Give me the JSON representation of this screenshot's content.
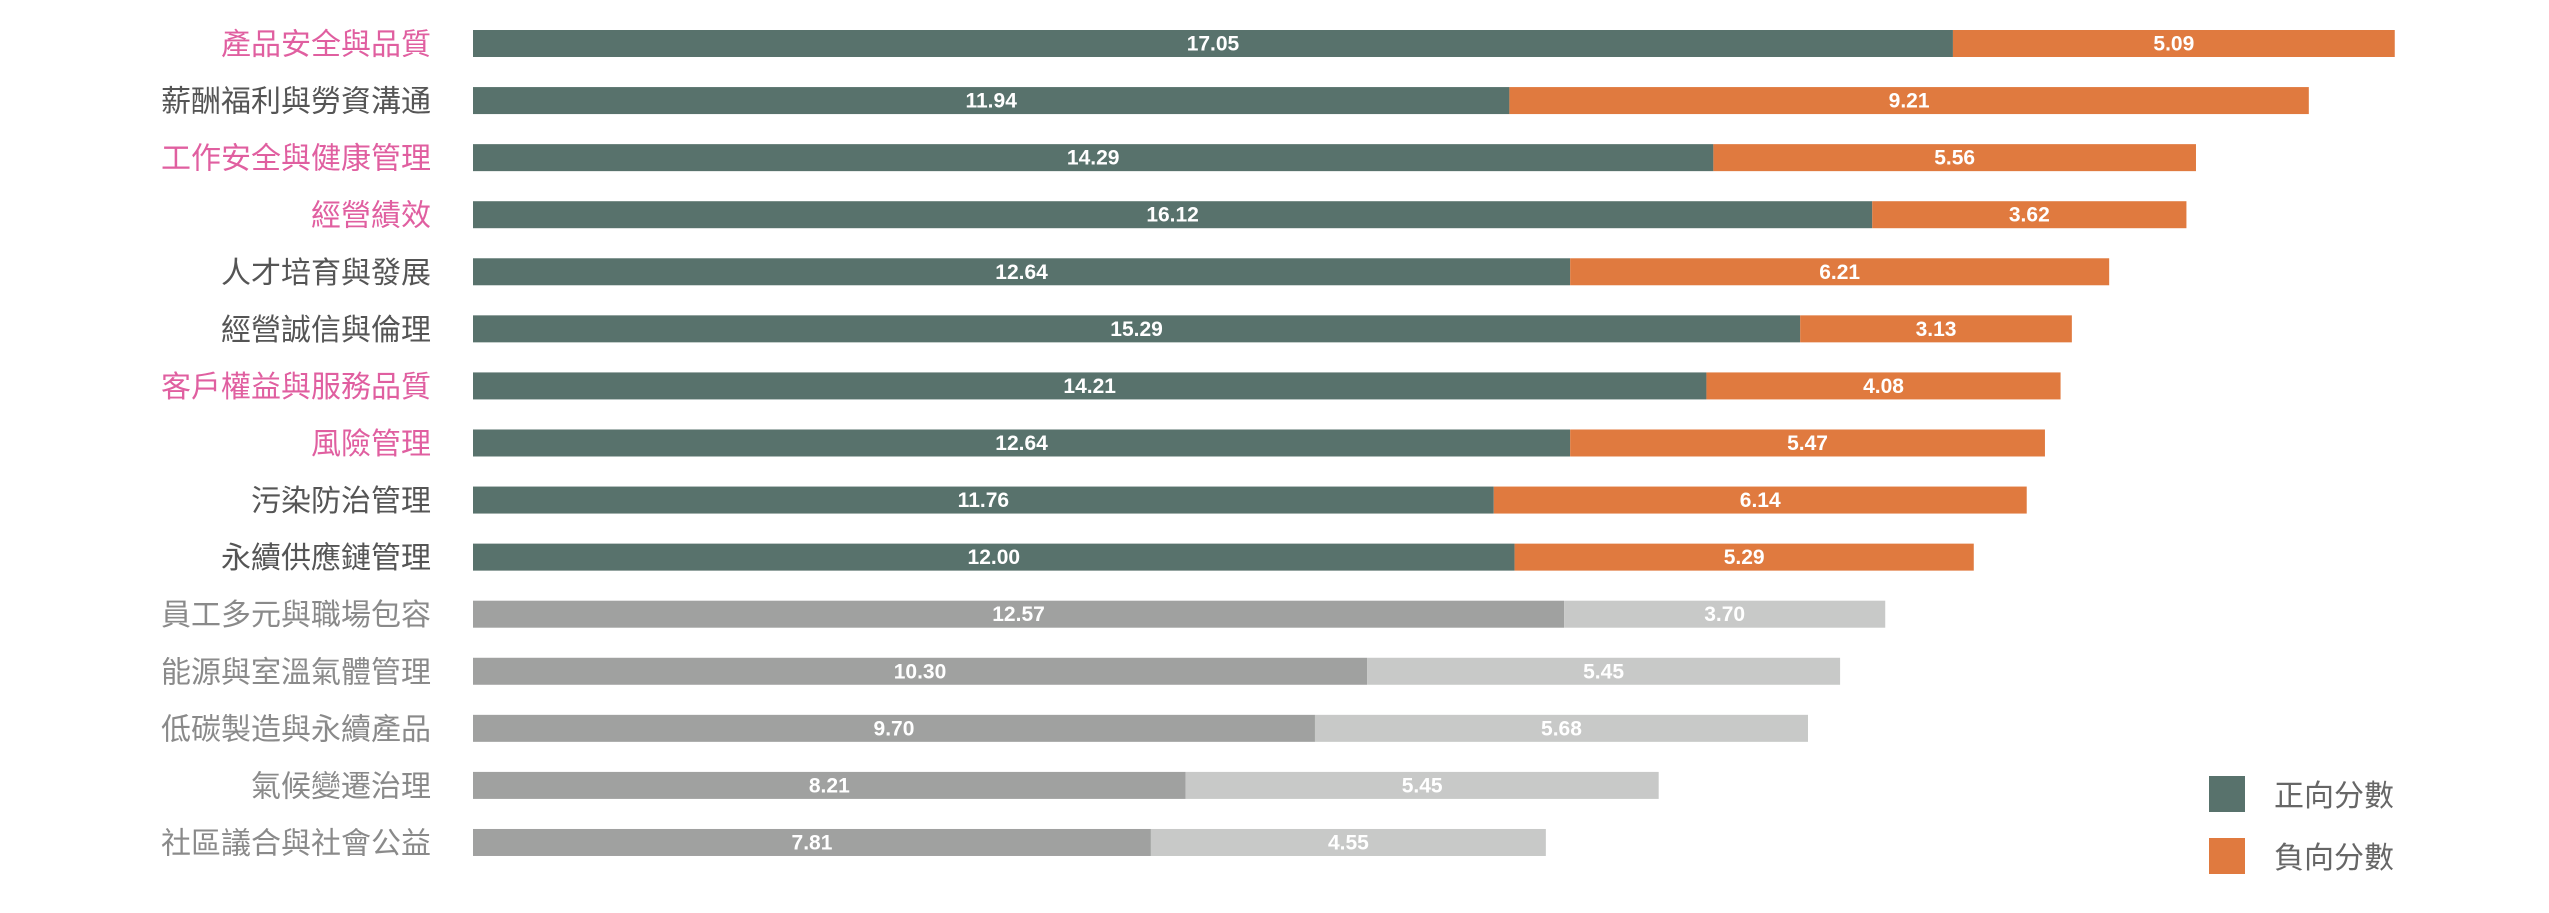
{
  "chart_data": {
    "type": "bar",
    "orientation": "horizontal",
    "stacked": true,
    "title": "",
    "xlabel": "",
    "ylabel": "",
    "xlim": [
      0,
      22.14
    ],
    "grid": false,
    "legend_position": "bottom-right",
    "categories": [
      "產品安全與品質",
      "薪酬福利與勞資溝通",
      "工作安全與健康管理",
      "經營績效",
      "人才培育與發展",
      "經營誠信與倫理",
      "客戶權益與服務品質",
      "風險管理",
      "污染防治管理",
      "永續供應鏈管理",
      "員工多元與職場包容",
      "能源與室溫氣體管理",
      "低碳製造與永續產品",
      "氣候變遷治理",
      "社區議合與社會公益"
    ],
    "category_highlight": [
      "pink",
      "dark",
      "pink",
      "pink",
      "dark",
      "dark",
      "pink",
      "pink",
      "dark",
      "dark",
      "muted",
      "muted",
      "muted",
      "muted",
      "muted"
    ],
    "series": [
      {
        "name": "正向分數",
        "values": [
          17.05,
          11.94,
          14.29,
          16.12,
          12.64,
          15.29,
          14.21,
          12.64,
          11.76,
          12.0,
          12.57,
          10.3,
          9.7,
          8.21,
          7.81
        ],
        "labels": [
          "17.05",
          "11.94",
          "14.29",
          "16.12",
          "12.64",
          "15.29",
          "14.21",
          "12.64",
          "11.76",
          "12.00",
          "12.57",
          "10.30",
          "9.70",
          "8.21",
          "7.81"
        ]
      },
      {
        "name": "負向分數",
        "values": [
          5.09,
          9.21,
          5.56,
          3.62,
          6.21,
          3.13,
          4.08,
          5.47,
          6.14,
          5.29,
          3.7,
          5.45,
          5.68,
          5.45,
          4.55
        ],
        "labels": [
          "5.09",
          "9.21",
          "5.56",
          "3.62",
          "6.21",
          "3.13",
          "4.08",
          "5.47",
          "6.14",
          "5.29",
          "3.70",
          "5.45",
          "5.68",
          "5.45",
          "4.55"
        ]
      }
    ],
    "muted_from_index": 10,
    "legend": [
      "正向分數",
      "負向分數"
    ]
  },
  "colors": {
    "positive": "#58726c",
    "negative": "#e07a3f",
    "positive_muted": "#a0a1a0",
    "negative_muted": "#c8c9c8",
    "label_pink": "#e05fa0",
    "label_dark": "#555555",
    "label_muted": "#8a8a8a"
  }
}
